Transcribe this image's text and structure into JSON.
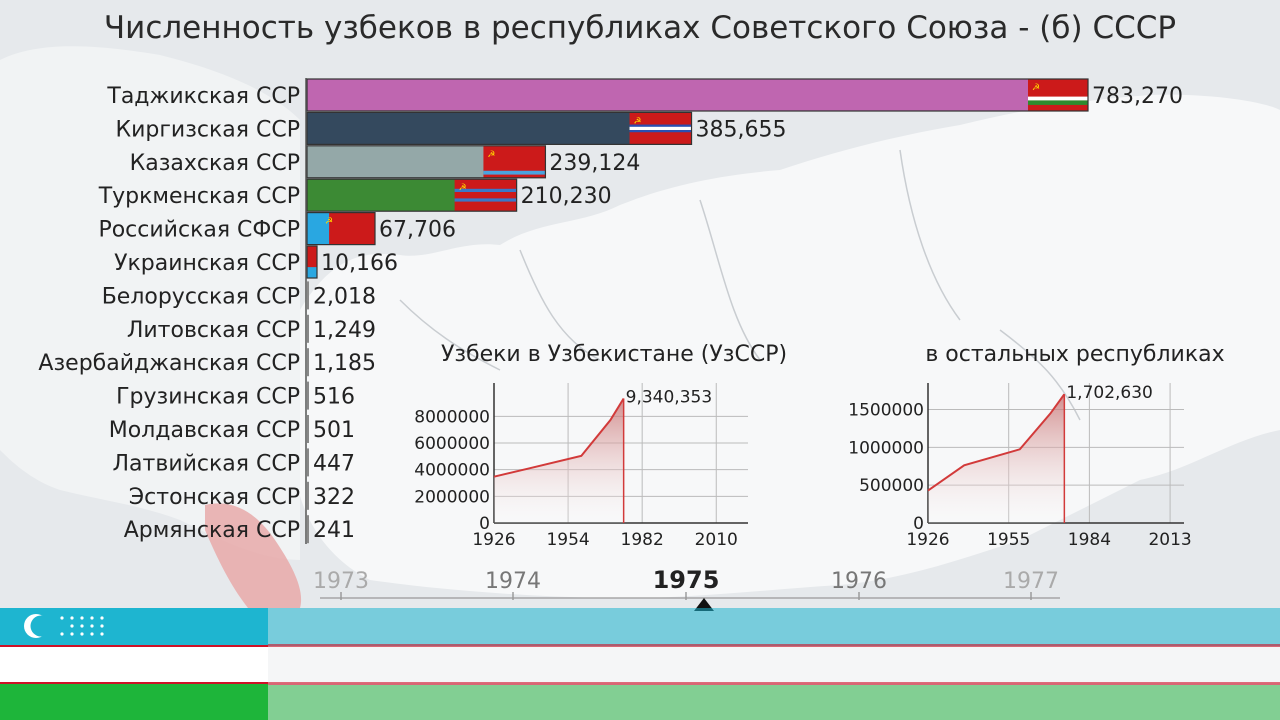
{
  "title": "Численность узбеков в республиках Советского Союза - (б) СССР",
  "colors": {
    "background": "#e6e9ec",
    "map_land": "#f7f8f9",
    "axis_line": "#444444",
    "line_chart_stroke": "#d23a3a",
    "uzbek_blue": "#1eb5d0",
    "uzbek_red": "#ce1126",
    "uzbek_green": "#1eb53a"
  },
  "chart_data": [
    {
      "type": "bar",
      "title": "Численность узбеков в республиках Советского Союза - (б) СССР",
      "orientation": "horizontal",
      "categories": [
        "Таджикская ССР",
        "Киргизская ССР",
        "Казахская ССР",
        "Туркменская ССР",
        "Российская СФСР",
        "Украинская ССР",
        "Белорусская ССР",
        "Литовская ССР",
        "Азербайджанская ССР",
        "Грузинская ССР",
        "Молдавская ССР",
        "Латвийская ССР",
        "Эстонская ССР",
        "Армянская ССР"
      ],
      "values": [
        783270,
        385655,
        239124,
        210230,
        67706,
        10166,
        2018,
        1249,
        1185,
        516,
        501,
        447,
        322,
        241
      ],
      "value_labels": [
        "783,270",
        "385,655",
        "239,124",
        "210,230",
        "67,706",
        "10,166",
        "2,018",
        "1,249",
        "1,185",
        "516",
        "501",
        "447",
        "322",
        "241"
      ],
      "bar_colors": [
        "#bf66b0",
        "#34495e",
        "#94a8a8",
        "#3c8a34",
        "#29a7e1",
        "#d01818",
        "#888888",
        "#888888",
        "#888888",
        "#888888",
        "#888888",
        "#888888",
        "#888888",
        "#888888"
      ],
      "flags": [
        "tajik-ssr-flag",
        "kirgiz-ssr-flag",
        "kazakh-ssr-flag",
        "turkmen-ssr-flag",
        "rsfsr-flag",
        "ukrainian-ssr-flag",
        "",
        "",
        "",
        "",
        "",
        "",
        "",
        ""
      ],
      "xlim": [
        0,
        783270
      ]
    },
    {
      "type": "area",
      "title": "Узбеки в Узбекистане (УзССР)",
      "x": [
        1926,
        1939,
        1959,
        1970,
        1975
      ],
      "y": [
        3475340,
        4081096,
        5038273,
        7724715,
        9340353
      ],
      "end_label": "9,340,353",
      "xticks": [
        "1926",
        "1954",
        "1982",
        "2010"
      ],
      "xlim": [
        1926,
        2022
      ],
      "yticks": [
        "0",
        "2000000",
        "4000000",
        "6000000",
        "8000000"
      ],
      "ylim": [
        0,
        10500000
      ],
      "grid": true
    },
    {
      "type": "area",
      "title": "в остальных республиках",
      "x": [
        1926,
        1939,
        1959,
        1970,
        1975
      ],
      "y": [
        429000,
        762000,
        974000,
        1448000,
        1702630
      ],
      "end_label": "1,702,630",
      "xticks": [
        "1926",
        "1955",
        "1984",
        "2013"
      ],
      "xlim": [
        1926,
        2018
      ],
      "yticks": [
        "0",
        "500000",
        "1000000",
        "1500000"
      ],
      "ylim": [
        0,
        1850000
      ],
      "grid": true
    }
  ],
  "timeline": {
    "years": [
      "1973",
      "1974",
      "1975",
      "1976",
      "1977"
    ],
    "current": "1975",
    "current_index": 2
  },
  "flag_band": {
    "icon": "uzbek-flag-icon",
    "stripe_colors": [
      "#1eb5d0",
      "#ffffff",
      "#1eb53a"
    ],
    "divider_color": "#ce1126"
  }
}
